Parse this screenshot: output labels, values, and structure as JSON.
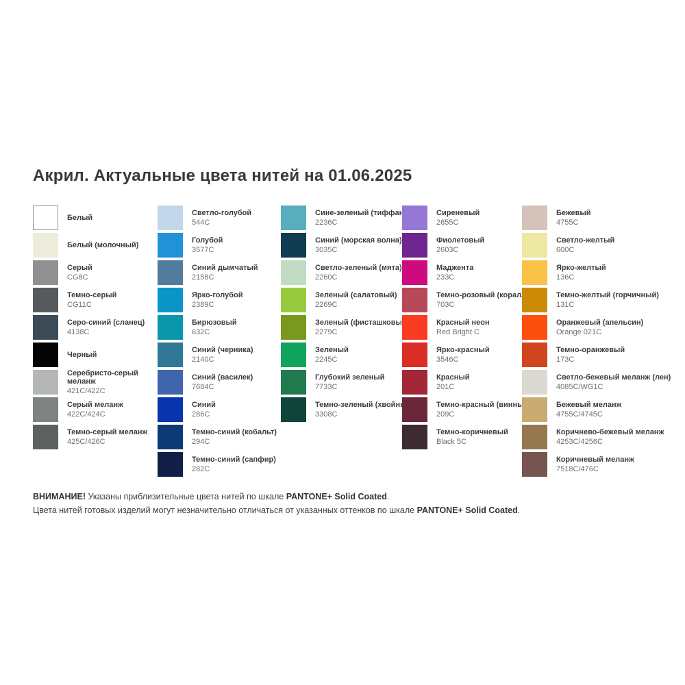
{
  "title": "Акрил. Актуальные цвета нитей на 01.06.2025",
  "palette_scale": "PANTONE+ Solid Coated",
  "columns": [
    {
      "items": [
        {
          "lines": [
            "Белый"
          ],
          "code": "",
          "hex": "#ffffff",
          "border": true
        },
        {
          "lines": [
            "Белый (молочный)"
          ],
          "code": "",
          "hex": "#edecdb",
          "border": false
        },
        {
          "lines": [
            "Серый"
          ],
          "code": "CG8C",
          "hex": "#8e9092",
          "border": false
        },
        {
          "lines": [
            "Темно-серый"
          ],
          "code": "CG11C",
          "hex": "#565a5d",
          "border": false
        },
        {
          "lines": [
            "Серо-синий (сланец)"
          ],
          "code": "4138C",
          "hex": "#3c4a57",
          "border": false
        },
        {
          "lines": [
            "Черный"
          ],
          "code": "",
          "hex": "#040404",
          "border": false
        },
        {
          "lines": [
            "Серебристо-серый",
            "меланж"
          ],
          "code": "421C/422C",
          "hex": "#b5b7b6",
          "border": false
        },
        {
          "lines": [
            "Серый меланж"
          ],
          "code": "422C/424C",
          "hex": "#7f8283",
          "border": false
        },
        {
          "lines": [
            "Темно-серый меланж"
          ],
          "code": "425C/426C",
          "hex": "#5e6162",
          "border": false
        }
      ]
    },
    {
      "items": [
        {
          "lines": [
            "Светло-голубой"
          ],
          "code": "544C",
          "hex": "#c3d7ea",
          "border": false
        },
        {
          "lines": [
            "Голубой"
          ],
          "code": "3577C",
          "hex": "#2292d8",
          "border": false
        },
        {
          "lines": [
            "Синий дымчатый"
          ],
          "code": "2158C",
          "hex": "#527c9d",
          "border": false
        },
        {
          "lines": [
            "Ярко-голубой"
          ],
          "code": "2389C",
          "hex": "#0a95c7",
          "border": false
        },
        {
          "lines": [
            "Бирюзовый"
          ],
          "code": "632C",
          "hex": "#0b96ab",
          "border": false
        },
        {
          "lines": [
            "Синий (черника)"
          ],
          "code": "2140C",
          "hex": "#2f7897",
          "border": false
        },
        {
          "lines": [
            "Синий (василек)"
          ],
          "code": "7684C",
          "hex": "#4064ae",
          "border": false
        },
        {
          "lines": [
            "Синий"
          ],
          "code": "286C",
          "hex": "#0935ac",
          "border": false
        },
        {
          "lines": [
            "Темно-синий (кобальт)"
          ],
          "code": "294C",
          "hex": "#0c3a74",
          "border": false
        },
        {
          "lines": [
            "Темно-синий (сапфир)"
          ],
          "code": "282C",
          "hex": "#111f47",
          "border": false
        }
      ]
    },
    {
      "items": [
        {
          "lines": [
            "Сине-зеленый (тиффани)"
          ],
          "code": "2236C",
          "hex": "#58aebd",
          "border": false
        },
        {
          "lines": [
            "Синий (морская волна)"
          ],
          "code": "3035C",
          "hex": "#123c51",
          "border": false
        },
        {
          "lines": [
            "Светло-зеленый (мята)"
          ],
          "code": "2260C",
          "hex": "#c2dcc3",
          "border": false
        },
        {
          "lines": [
            "Зеленый (салатовый)"
          ],
          "code": "2269C",
          "hex": "#97ca3e",
          "border": false
        },
        {
          "lines": [
            "Зеленый (фисташковый)"
          ],
          "code": "2279C",
          "hex": "#78991d",
          "border": false
        },
        {
          "lines": [
            "Зеленый"
          ],
          "code": "2245C",
          "hex": "#11a35c",
          "border": false
        },
        {
          "lines": [
            "Глубокий зеленый"
          ],
          "code": "7733C",
          "hex": "#1f7a4d",
          "border": false
        },
        {
          "lines": [
            "Темно-зеленый (хвойный)"
          ],
          "code": "3308C",
          "hex": "#114438",
          "border": false
        }
      ]
    },
    {
      "items": [
        {
          "lines": [
            "Сиреневый"
          ],
          "code": "2655C",
          "hex": "#9577d8",
          "border": false
        },
        {
          "lines": [
            "Фиолетовый"
          ],
          "code": "2603C",
          "hex": "#6f2590",
          "border": false
        },
        {
          "lines": [
            "Маджента"
          ],
          "code": "233C",
          "hex": "#ce0a80",
          "border": false
        },
        {
          "lines": [
            "Темно-розовый (коралл)"
          ],
          "code": "703C",
          "hex": "#b84956",
          "border": false
        },
        {
          "lines": [
            "Красный неон"
          ],
          "code": "Red Bright C",
          "hex": "#f93c21",
          "border": false
        },
        {
          "lines": [
            "Ярко-красный"
          ],
          "code": "3546C",
          "hex": "#db2d26",
          "border": false
        },
        {
          "lines": [
            "Красный"
          ],
          "code": "201C",
          "hex": "#a32639",
          "border": false
        },
        {
          "lines": [
            "Темно-красный (винный)"
          ],
          "code": "209C",
          "hex": "#6b2639",
          "border": false
        },
        {
          "lines": [
            "Темно-коричневый"
          ],
          "code": "Black 5C",
          "hex": "#3c2b30",
          "border": false
        }
      ]
    },
    {
      "items": [
        {
          "lines": [
            "Бежевый"
          ],
          "code": "4755C",
          "hex": "#d5c2bb",
          "border": false
        },
        {
          "lines": [
            "Светло-желтый"
          ],
          "code": "600C",
          "hex": "#ede8a1",
          "border": false
        },
        {
          "lines": [
            "Ярко-желтый"
          ],
          "code": "136C",
          "hex": "#fbc248",
          "border": false
        },
        {
          "lines": [
            "Темно-желтый (горчичный)"
          ],
          "code": "131C",
          "hex": "#cc8b06",
          "border": false
        },
        {
          "lines": [
            "Оранжевый (апельсин)"
          ],
          "code": "Orange 021C",
          "hex": "#fc4e0c",
          "border": false
        },
        {
          "lines": [
            "Темно-оранжевый"
          ],
          "code": "173C",
          "hex": "#d0451f",
          "border": false
        },
        {
          "lines": [
            "Светло-бежевый меланж (лен)"
          ],
          "code": "4085C/WG1C",
          "hex": "#dbd9d2",
          "border": false
        },
        {
          "lines": [
            "Бежевый меланж"
          ],
          "code": "4755C/4745C",
          "hex": "#c9aa71",
          "border": false
        },
        {
          "lines": [
            "Коричнево-бежевый меланж"
          ],
          "code": "4253C/4256C",
          "hex": "#957750",
          "border": false
        },
        {
          "lines": [
            "Коричневый меланж"
          ],
          "code": "7518C/476C",
          "hex": "#765550",
          "border": false
        }
      ]
    }
  ],
  "footer": {
    "attention": "ВНИМАНИЕ!",
    "line1_text": " Указаны приблизительные цвета нитей по шкале ",
    "line1_bold": "PANTONE+ Solid Coated",
    "line1_period": ".",
    "line2_text": "Цвета нитей готовых изделий могут незначительно отличаться от указанных оттенков по шкале ",
    "line2_bold": "PANTONE+ Solid Coated",
    "line2_period": "."
  }
}
